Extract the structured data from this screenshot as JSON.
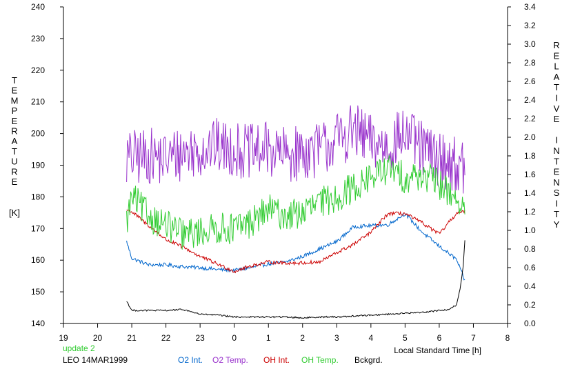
{
  "chart_data": {
    "type": "line",
    "left_axis": {
      "label_letters": [
        "T",
        "E",
        "M",
        "P",
        "E",
        "R",
        "A",
        "T",
        "U",
        "R",
        "E"
      ],
      "unit": "[K]",
      "ylim": [
        140,
        240
      ],
      "ticks": [
        "140",
        "150",
        "160",
        "170",
        "180",
        "190",
        "200",
        "210",
        "220",
        "230",
        "240"
      ]
    },
    "right_axis": {
      "label_letters": [
        "R",
        "E",
        "L",
        "A",
        "T",
        "I",
        "V",
        "E",
        "",
        "I",
        "N",
        "T",
        "E",
        "N",
        "S",
        "I",
        "T",
        "Y"
      ],
      "ylim": [
        0.0,
        3.4
      ],
      "ticks": [
        "0.0",
        "0.2",
        "0.4",
        "0.6",
        "0.8",
        "1.0",
        "1.2",
        "1.4",
        "1.6",
        "1.8",
        "2.0",
        "2.2",
        "2.4",
        "2.6",
        "2.8",
        "3.0",
        "3.2",
        "3.4"
      ]
    },
    "x_axis": {
      "xlim": [
        19,
        32
      ],
      "ticks": [
        "19",
        "20",
        "21",
        "22",
        "23",
        "0",
        "1",
        "2",
        "3",
        "4",
        "5",
        "6",
        "7",
        "8"
      ],
      "label": "Local Standard Time [h]"
    },
    "header_note": "update 2",
    "station": "LEO 14MAR1999",
    "grid": false,
    "legend_position": "bottom",
    "series": [
      {
        "name": "O2 Int.",
        "color": "#0066cc",
        "axis": "right",
        "noise": 0.02,
        "x": [
          20.85,
          21.0,
          21.5,
          22.0,
          22.5,
          23.0,
          23.5,
          24.0,
          24.5,
          25.0,
          25.5,
          26.0,
          26.5,
          27.0,
          27.5,
          28.0,
          28.5,
          29.0,
          29.5,
          30.0,
          30.5,
          30.75
        ],
        "values": [
          0.88,
          0.7,
          0.63,
          0.63,
          0.61,
          0.6,
          0.58,
          0.57,
          0.6,
          0.64,
          0.66,
          0.72,
          0.8,
          0.88,
          1.04,
          1.05,
          1.06,
          1.18,
          0.98,
          0.83,
          0.69,
          0.46
        ]
      },
      {
        "name": "O2 Temp.",
        "color": "#9933cc",
        "axis": "left",
        "noise": 9,
        "x": [
          20.85,
          21.5,
          22.0,
          22.5,
          23.0,
          23.5,
          24.0,
          24.5,
          25.0,
          25.5,
          26.0,
          26.5,
          27.0,
          27.5,
          28.0,
          28.5,
          29.0,
          29.5,
          30.0,
          30.5,
          30.75
        ],
        "values": [
          192,
          193,
          192,
          194,
          195,
          196,
          195,
          194,
          195,
          193,
          194,
          195,
          198,
          201,
          197,
          196,
          200,
          195,
          192,
          190,
          188
        ]
      },
      {
        "name": "OH Int.",
        "color": "#cc0000",
        "axis": "right",
        "noise": 0.02,
        "x": [
          20.85,
          21.0,
          21.5,
          22.0,
          22.5,
          23.0,
          23.5,
          24.0,
          24.5,
          25.0,
          25.5,
          26.0,
          26.5,
          27.0,
          27.5,
          28.0,
          28.5,
          29.0,
          29.5,
          30.0,
          30.5,
          30.75
        ],
        "values": [
          1.22,
          1.2,
          1.05,
          0.9,
          0.82,
          0.72,
          0.64,
          0.56,
          0.62,
          0.66,
          0.65,
          0.65,
          0.66,
          0.76,
          0.85,
          0.98,
          1.18,
          1.18,
          1.08,
          0.96,
          1.18,
          1.2
        ]
      },
      {
        "name": "OH Temp.",
        "color": "#33cc33",
        "axis": "left",
        "noise": 5,
        "x": [
          20.85,
          21.0,
          21.5,
          22.0,
          22.5,
          23.0,
          23.5,
          24.0,
          24.5,
          25.0,
          25.5,
          26.0,
          26.5,
          27.0,
          27.5,
          28.0,
          28.5,
          29.0,
          29.5,
          30.0,
          30.5,
          30.75
        ],
        "values": [
          172,
          180,
          174,
          171,
          168,
          169,
          170,
          170,
          172,
          176,
          174,
          175,
          178,
          180,
          183,
          186,
          189,
          186,
          187,
          184,
          180,
          174
        ]
      },
      {
        "name": "Bckgrd.",
        "color": "#000000",
        "axis": "right",
        "noise": 0.008,
        "x": [
          20.85,
          21.0,
          21.5,
          22.0,
          22.5,
          23.0,
          23.5,
          24.0,
          24.5,
          25.0,
          25.5,
          26.0,
          26.5,
          27.0,
          27.5,
          28.0,
          28.5,
          29.0,
          29.5,
          30.0,
          30.3,
          30.5,
          30.6,
          30.7,
          30.75
        ],
        "values": [
          0.24,
          0.14,
          0.14,
          0.14,
          0.15,
          0.1,
          0.09,
          0.07,
          0.07,
          0.07,
          0.07,
          0.06,
          0.07,
          0.07,
          0.08,
          0.09,
          0.1,
          0.11,
          0.12,
          0.14,
          0.15,
          0.2,
          0.35,
          0.6,
          0.9
        ]
      }
    ]
  }
}
